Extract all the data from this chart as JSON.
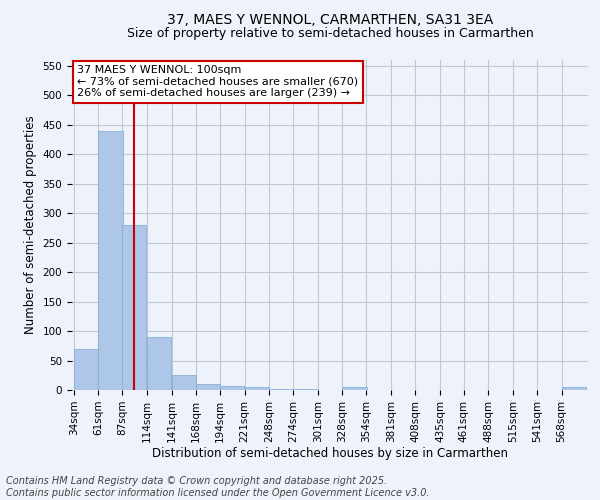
{
  "title": "37, MAES Y WENNOL, CARMARTHEN, SA31 3EA",
  "subtitle": "Size of property relative to semi-detached houses in Carmarthen",
  "xlabel": "Distribution of semi-detached houses by size in Carmarthen",
  "ylabel": "Number of semi-detached properties",
  "bins": [
    "34sqm",
    "61sqm",
    "87sqm",
    "114sqm",
    "141sqm",
    "168sqm",
    "194sqm",
    "221sqm",
    "248sqm",
    "274sqm",
    "301sqm",
    "328sqm",
    "354sqm",
    "381sqm",
    "408sqm",
    "435sqm",
    "461sqm",
    "488sqm",
    "515sqm",
    "541sqm",
    "568sqm"
  ],
  "bin_edges": [
    34,
    61,
    87,
    114,
    141,
    168,
    194,
    221,
    248,
    274,
    301,
    328,
    354,
    381,
    408,
    435,
    461,
    488,
    515,
    541,
    568
  ],
  "values": [
    70,
    440,
    280,
    90,
    25,
    10,
    7,
    5,
    2,
    1,
    0,
    5,
    0,
    0,
    0,
    0,
    0,
    0,
    0,
    0,
    5
  ],
  "bar_color": "#aec6e8",
  "bar_edge_color": "#7baad4",
  "grid_color": "#c0c8d8",
  "background_color": "#eef2fa",
  "vline_x": 100,
  "vline_color": "#cc0000",
  "annotation_line1": "37 MAES Y WENNOL: 100sqm",
  "annotation_line2": "← 73% of semi-detached houses are smaller (670)",
  "annotation_line3": "26% of semi-detached houses are larger (239) →",
  "annotation_box_color": "#cc0000",
  "ylim": [
    0,
    560
  ],
  "yticks": [
    0,
    50,
    100,
    150,
    200,
    250,
    300,
    350,
    400,
    450,
    500,
    550
  ],
  "footer": "Contains HM Land Registry data © Crown copyright and database right 2025.\nContains public sector information licensed under the Open Government Licence v3.0.",
  "title_fontsize": 10,
  "subtitle_fontsize": 9,
  "axis_label_fontsize": 8.5,
  "tick_fontsize": 7.5,
  "annotation_fontsize": 8,
  "footer_fontsize": 7
}
